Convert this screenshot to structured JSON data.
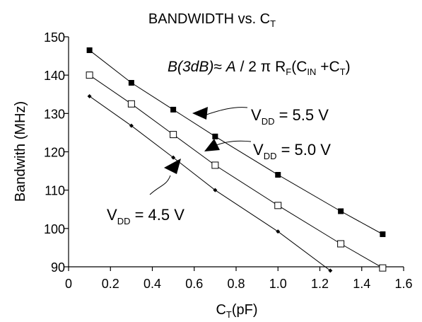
{
  "chart_data": {
    "type": "line",
    "title": {
      "main": "BANDWIDTH vs. C",
      "sub": "T"
    },
    "xlabel": {
      "main": "C",
      "sub": "T",
      "rest": "(pF)"
    },
    "ylabel": "Bandwith (MHz)",
    "xlim": [
      0,
      1.6
    ],
    "ylim": [
      90,
      150
    ],
    "x_ticks": [
      "0",
      "0.2",
      "0.4",
      "0.6",
      "0.8",
      "1.0",
      "1.2",
      "1.4",
      "1.6"
    ],
    "y_ticks": [
      "90",
      "100",
      "110",
      "120",
      "130",
      "140",
      "150"
    ],
    "grid": false,
    "series": [
      {
        "marker": "filled-square",
        "x": [
          0.1,
          0.3,
          0.5,
          0.7,
          1.0,
          1.3,
          1.5
        ],
        "y": [
          146.5,
          138.0,
          131.0,
          124.0,
          114.0,
          104.5,
          98.5
        ]
      },
      {
        "marker": "open-square",
        "x": [
          0.1,
          0.3,
          0.5,
          0.7,
          1.0,
          1.3,
          1.5
        ],
        "y": [
          140.0,
          132.5,
          124.5,
          116.5,
          106.0,
          96.0,
          89.7
        ]
      },
      {
        "marker": "small-diamond",
        "x": [
          0.1,
          0.3,
          0.5,
          0.7,
          1.0,
          1.25
        ],
        "y": [
          134.5,
          126.8,
          118.5,
          110.0,
          99.2,
          89.0
        ]
      }
    ],
    "annotations": {
      "vdd55": {
        "v": "V",
        "sub": "DD",
        "rest": " = 5.5 V"
      },
      "vdd50": {
        "v": "V",
        "sub": "DD",
        "rest": " = 5.0 V"
      },
      "vdd45": {
        "v": "V",
        "sub": "DD",
        "rest": " = 4.5 V"
      },
      "formula": {
        "t1": "B(3dB)",
        "t2": "≈ ",
        "t3": "A",
        "t4": " / 2 π R",
        "s1": "F",
        "t5": "(C",
        "s2": "IN",
        "t6": " +C",
        "s3": "T",
        "t7": ")"
      }
    }
  }
}
